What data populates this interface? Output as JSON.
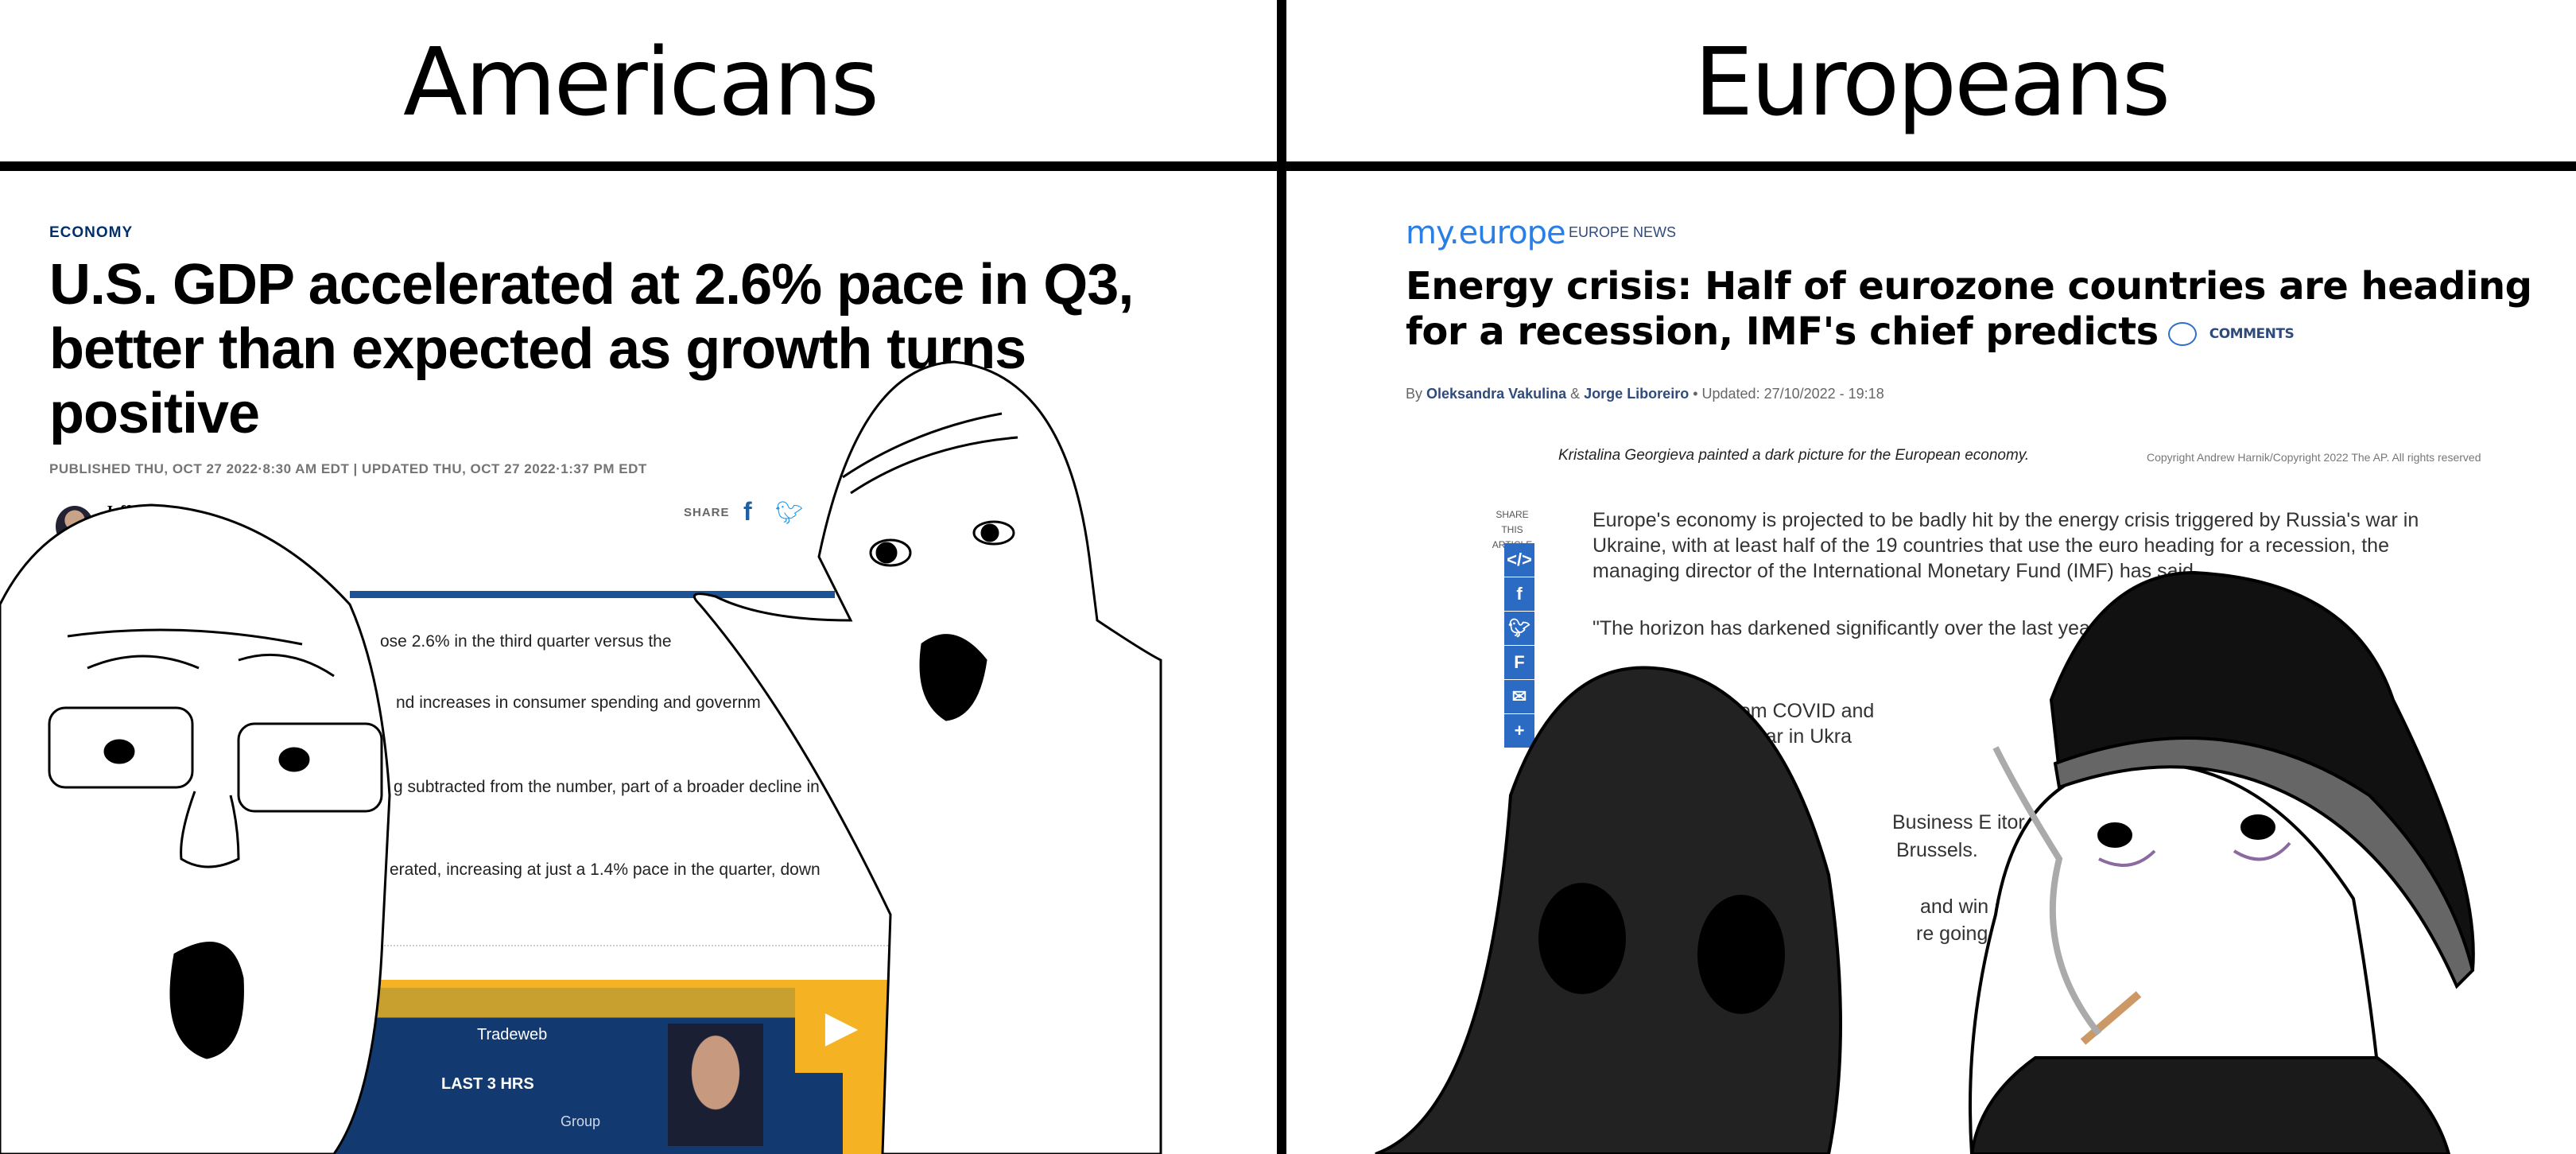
{
  "headers": {
    "left": "Americans",
    "right": "Europeans"
  },
  "us_article": {
    "category": "ECONOMY",
    "title": "U.S. GDP accelerated at 2.6% pace in Q3, better than expected as growth turns positive",
    "published": "PUBLISHED THU, OCT 27 2022·8:30 AM EDT | UPDATED THU, OCT 27 2022·1:37 PM EDT",
    "author": "Jeff Co",
    "share_label": "SHARE",
    "share_icons": [
      "facebook-icon",
      "twitter-icon"
    ],
    "body_fragments": [
      "ose 2.6% in the third quarter versus the",
      "nd increases in consumer spending and governm",
      "g subtracted from the number, part of a broader decline in",
      "erated, increasing at just a 1.4% pace in the quarter, down"
    ],
    "video": {
      "logo_text": "Tradeweb",
      "label": "LAST 3 HRS",
      "side_text": "Group",
      "play_icon": "play-icon"
    }
  },
  "eu_article": {
    "logo": "my.europe",
    "section": "EUROPE NEWS",
    "title": "Energy crisis: Half of eurozone countries are heading for a recession, IMF's chief predicts",
    "comments_label": "COMMENTS",
    "by": "By",
    "author1": "Oleksandra Vakulina",
    "amp": "&",
    "author2": "Jorge Liboreiro",
    "updated": "Updated: 27/10/2022 - 19:18",
    "caption": "Kristalina Georgieva painted a dark picture for the European economy.",
    "copyright": "Copyright  Andrew Harnik/Copyright 2022 The AP. All rights reserved",
    "share_this": "SHARE THIS ARTICLE",
    "share_icons": [
      "embed-icon",
      "facebook-icon",
      "twitter-icon",
      "flipboard-icon",
      "email-icon",
      "more-icon"
    ],
    "body_fragments": [
      "Europe's economy is projected to be badly hit by the energy crisis triggered by Russia's war in",
      "Ukraine, with at least half of the 19 countries that use the euro heading for a recession, the",
      "managing director of the International Monetary Fund (IMF) has said",
      "\"The horizon has darkened significantly over the last year,\"",
      "ering from COVID and",
      "ussia's war in Ukra",
      "Business E itor S",
      "Brussels.",
      "and win a ains",
      "re going up,\" he"
    ]
  },
  "colors": {
    "us_navy": "#002f6c",
    "us_blue_bar": "#1b5394",
    "video_yellow": "#f5b323",
    "eu_blue": "#2a7fe6",
    "eu_share_blue": "#2b6bc4"
  }
}
